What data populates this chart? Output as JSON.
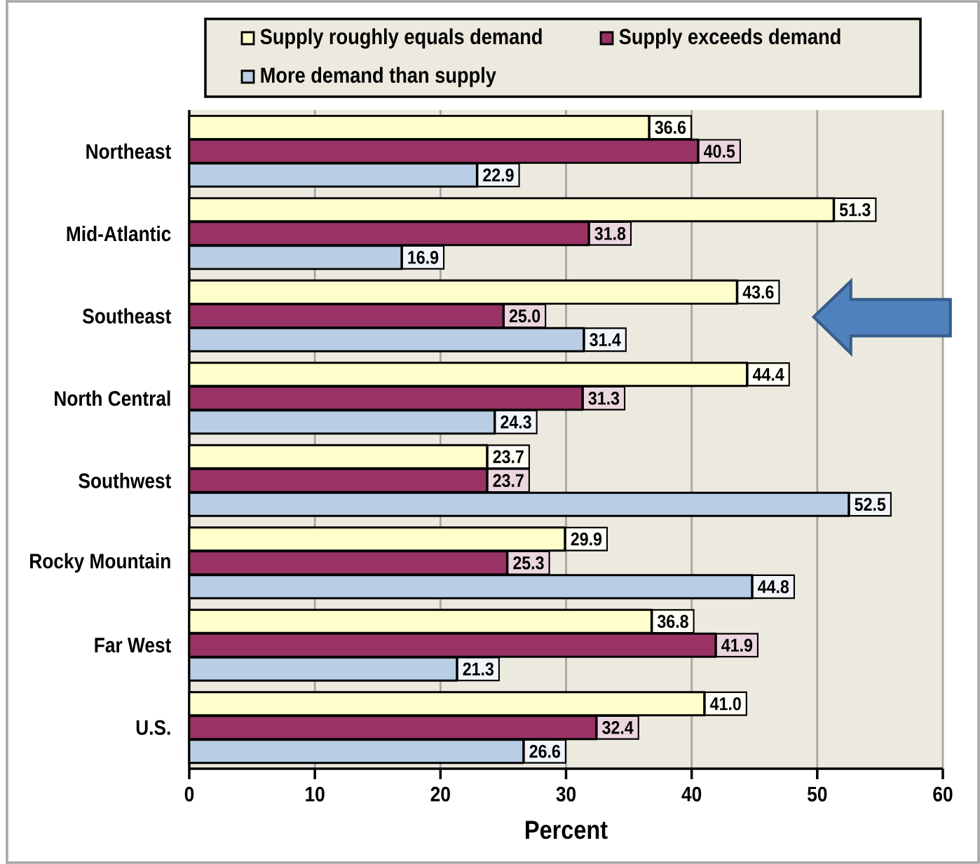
{
  "chart_data": {
    "type": "bar",
    "orientation": "horizontal",
    "xlabel": "Percent",
    "categories": [
      "Northeast",
      "Mid-Atlantic",
      "Southeast",
      "North Central",
      "Southwest",
      "Rocky Mountain",
      "Far West",
      "U.S."
    ],
    "series": [
      {
        "name": "Supply roughly equals demand",
        "color": "#ffffcc",
        "values": [
          36.6,
          51.3,
          43.6,
          44.4,
          23.7,
          29.9,
          36.8,
          41.0
        ],
        "value_labels": [
          "36.6",
          "51.3",
          "43.6",
          "44.4",
          "23.7",
          "29.9",
          "36.8",
          "41.0"
        ]
      },
      {
        "name": "Supply exceeds demand",
        "color": "#993366",
        "values": [
          40.5,
          31.8,
          25.0,
          31.3,
          23.7,
          25.3,
          41.9,
          32.4
        ],
        "value_labels": [
          "40.5",
          "31.8",
          "25.0",
          "31.3",
          "23.7",
          "25.3",
          "41.9",
          "32.4"
        ]
      },
      {
        "name": "More demand than supply",
        "color": "#b9cde5",
        "values": [
          22.9,
          16.9,
          31.4,
          24.3,
          52.5,
          44.8,
          21.3,
          26.6
        ],
        "value_labels": [
          "22.9",
          "16.9",
          "31.4",
          "24.3",
          "52.5",
          "44.8",
          "21.3",
          "26.6"
        ]
      }
    ],
    "xlim": [
      0,
      60
    ],
    "xticks": [
      0,
      10,
      20,
      30,
      40,
      50,
      60
    ],
    "grid": "x",
    "legend": "top"
  }
}
